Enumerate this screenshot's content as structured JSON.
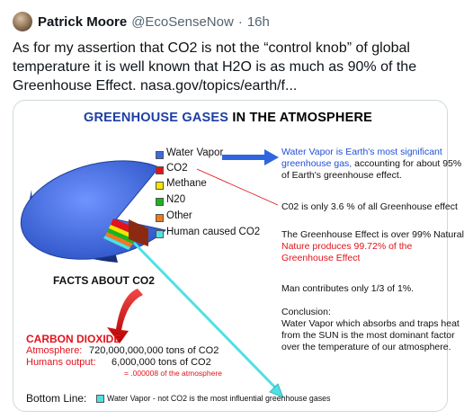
{
  "tweet": {
    "author_name": "Patrick Moore",
    "author_handle": "@EcoSenseNow",
    "separator": "·",
    "time": "16h",
    "text": "As for my assertion that CO2 is not the “control knob” of global temperature it is well known that H2O is as much as 90% of the Greenhouse Effect. nasa.gov/topics/earth/f..."
  },
  "infographic": {
    "title_part1": "GREENHOUSE GASES",
    "title_part2": "IN THE ATMOSPHERE",
    "legend": [
      {
        "label": "Water Vapor",
        "color": "#3b6bdc"
      },
      {
        "label": "CO2",
        "color": "#e3121b"
      },
      {
        "label": "Methane",
        "color": "#f2e600"
      },
      {
        "label": "N20",
        "color": "#19b51b"
      },
      {
        "label": "Other",
        "color": "#ec7a1e"
      },
      {
        "label": "Human caused CO2",
        "color": "#4fe0e3"
      }
    ],
    "right_text": {
      "water_vapor_line1": "Water Vapor is Earth's most significant",
      "water_vapor_line2a": "greenhouse gas,",
      "water_vapor_line2b": " accounting for about 95%",
      "water_vapor_line3": "of Earth's greenhouse effect.",
      "co2_share": "C02 is only 3.6 % of all Greenhouse effect",
      "natural_line1": "The Greenhouse Effect is over 99% Natural",
      "natural_line2": "Nature produces 99.72% of the",
      "natural_line3": "Greenhouse Effect",
      "man": "Man contributes only 1/3 of 1%.",
      "conclusion_head": "Conclusion:",
      "conclusion_line1": "Water Vapor which absorbs and traps heat",
      "conclusion_line2": "from the SUN is the most dominant factor",
      "conclusion_line3": "over the temperature of our atmosphere."
    },
    "facts_title": "FACTS ABOUT CO2",
    "carbon_dioxide": "CARBON DIOXIDE",
    "atmosphere_label": "Atmosphere:",
    "atmosphere_value": "720,000,000,000 tons of CO2",
    "humans_label": "Humans output:",
    "humans_value": "6,000,000 tons of CO2",
    "fraction": "= .000008 of the atmosphere",
    "bottom_label": "Bottom Line:",
    "bottom_text": "Water Vapor - not CO2 is the most influential greenhouse gases"
  }
}
